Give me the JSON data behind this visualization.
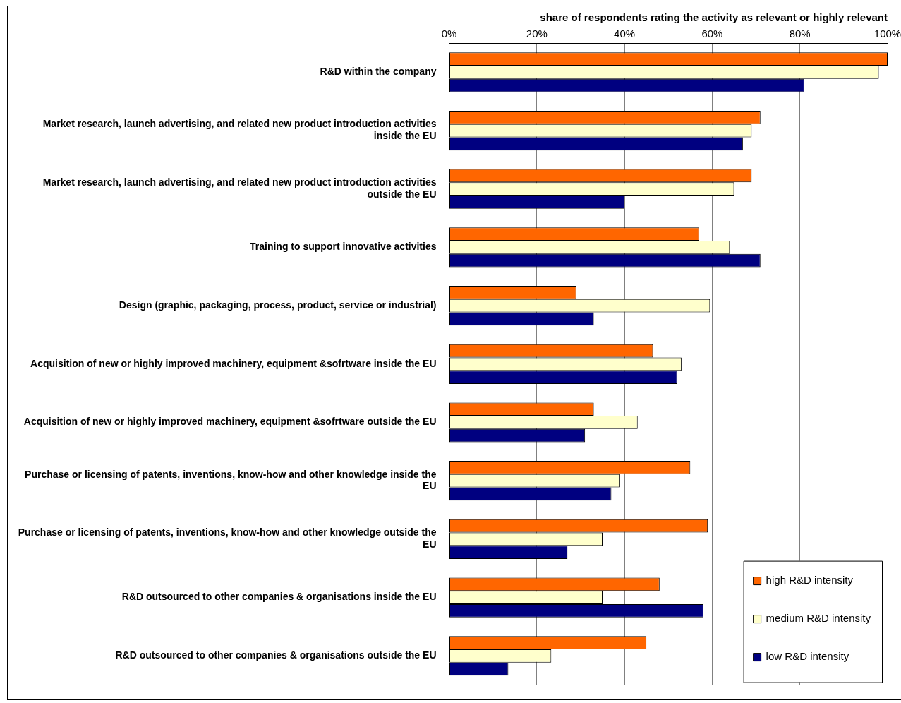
{
  "chart_data": {
    "type": "bar",
    "orientation": "horizontal",
    "xlabel": "share of respondents rating the activity as relevant or highly relevant",
    "categories": [
      "R&D within the company",
      "Market research, launch advertising, and related new product introduction activities inside the EU",
      "Market research, launch advertising, and related new product introduction activities outside the EU",
      "Training to support innovative activities",
      "Design (graphic, packaging, process, product, service or industrial)",
      "Acquisition of new or highly improved machinery, equipment &sofrtware inside the EU",
      "Acquisition of new or highly improved machinery, equipment &sofrtware outside the EU",
      "Purchase or licensing of patents, inventions, know-how and other knowledge inside the EU",
      "Purchase or licensing of patents, inventions, know-how and other knowledge outside the EU",
      "R&D outsourced to other companies & organisations inside the EU",
      "R&D outsourced to other companies & organisations outside the EU"
    ],
    "series": [
      {
        "name": "high R&D intensity",
        "color": "#ff6600",
        "values": [
          100,
          71,
          69,
          57,
          29,
          46.5,
          33,
          55,
          59,
          48,
          45
        ]
      },
      {
        "name": "medium R&D intensity",
        "color": "#ffffcc",
        "values": [
          98,
          69,
          65,
          64,
          59.5,
          53,
          43,
          39,
          35,
          35,
          23.3
        ]
      },
      {
        "name": "low R&D intensity",
        "color": "#000080",
        "values": [
          81,
          67,
          40,
          71,
          33,
          52,
          31,
          37,
          27,
          58,
          13.5
        ]
      }
    ],
    "xlim": [
      0,
      100
    ],
    "xticks": [
      {
        "value": 0,
        "label": "0%"
      },
      {
        "value": 20,
        "label": "20%"
      },
      {
        "value": 40,
        "label": "40%"
      },
      {
        "value": 60,
        "label": "60%"
      },
      {
        "value": 80,
        "label": "80%"
      },
      {
        "value": 100,
        "label": "100%"
      }
    ],
    "grid": "x",
    "legend": "bottom right"
  }
}
